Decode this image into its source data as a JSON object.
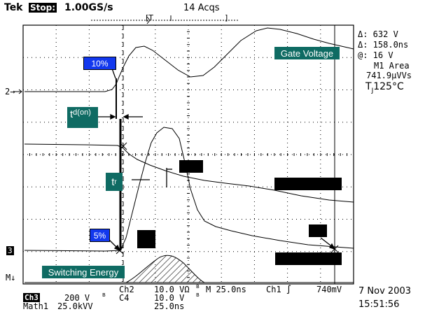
{
  "header": {
    "brand": "Tek",
    "state": "Stop:",
    "sample_rate": "1.00GS/s",
    "acqs": "14 Acqs",
    "trig_marker_left": "[T",
    "trig_marker_right": "]"
  },
  "readouts": {
    "delta_v": "Δ: 632 V",
    "delta_t": "Δ: 158.0ns",
    "at_v": "@: 16 V",
    "area_title": "M1 Area",
    "area_value": "741.9μVVs",
    "temp_prefix": "T",
    "temp_sub": "J",
    "temp_value": "125°C"
  },
  "annotations": {
    "gate_voltage": "Gate Voltage",
    "pct10": "10%",
    "pct5": "5%",
    "td_main": "t",
    "td_sub": "d(on)",
    "tr_main": "t",
    "tr_sub": "r",
    "switching_energy": "Switching Energy"
  },
  "markers": {
    "ch2": "2→",
    "ch3": "3",
    "math": "M↓"
  },
  "footer": {
    "ch2_label": "Ch2",
    "ch2_scale": "10.0 VΩ",
    "bw1": "B",
    "ch2_time": "M 25.0ns",
    "ch1_trig": "Ch1 ∫",
    "trig_level": "740mV",
    "ch3_label": "Ch3",
    "ch3_scale": "200 V",
    "bw2": "B",
    "ch4_label": "C4",
    "ch4_scale": "10.0 V",
    "bw3": "B",
    "math_label": "Math1",
    "math_scale": "25.0kVV",
    "math_time": "25.0ns",
    "date": "7 Nov 2003",
    "time": "15:51:56"
  },
  "colors": {
    "teal": "#0f6b63",
    "blue": "#1238ee",
    "trace": "#000000",
    "grid": "#000000"
  }
}
